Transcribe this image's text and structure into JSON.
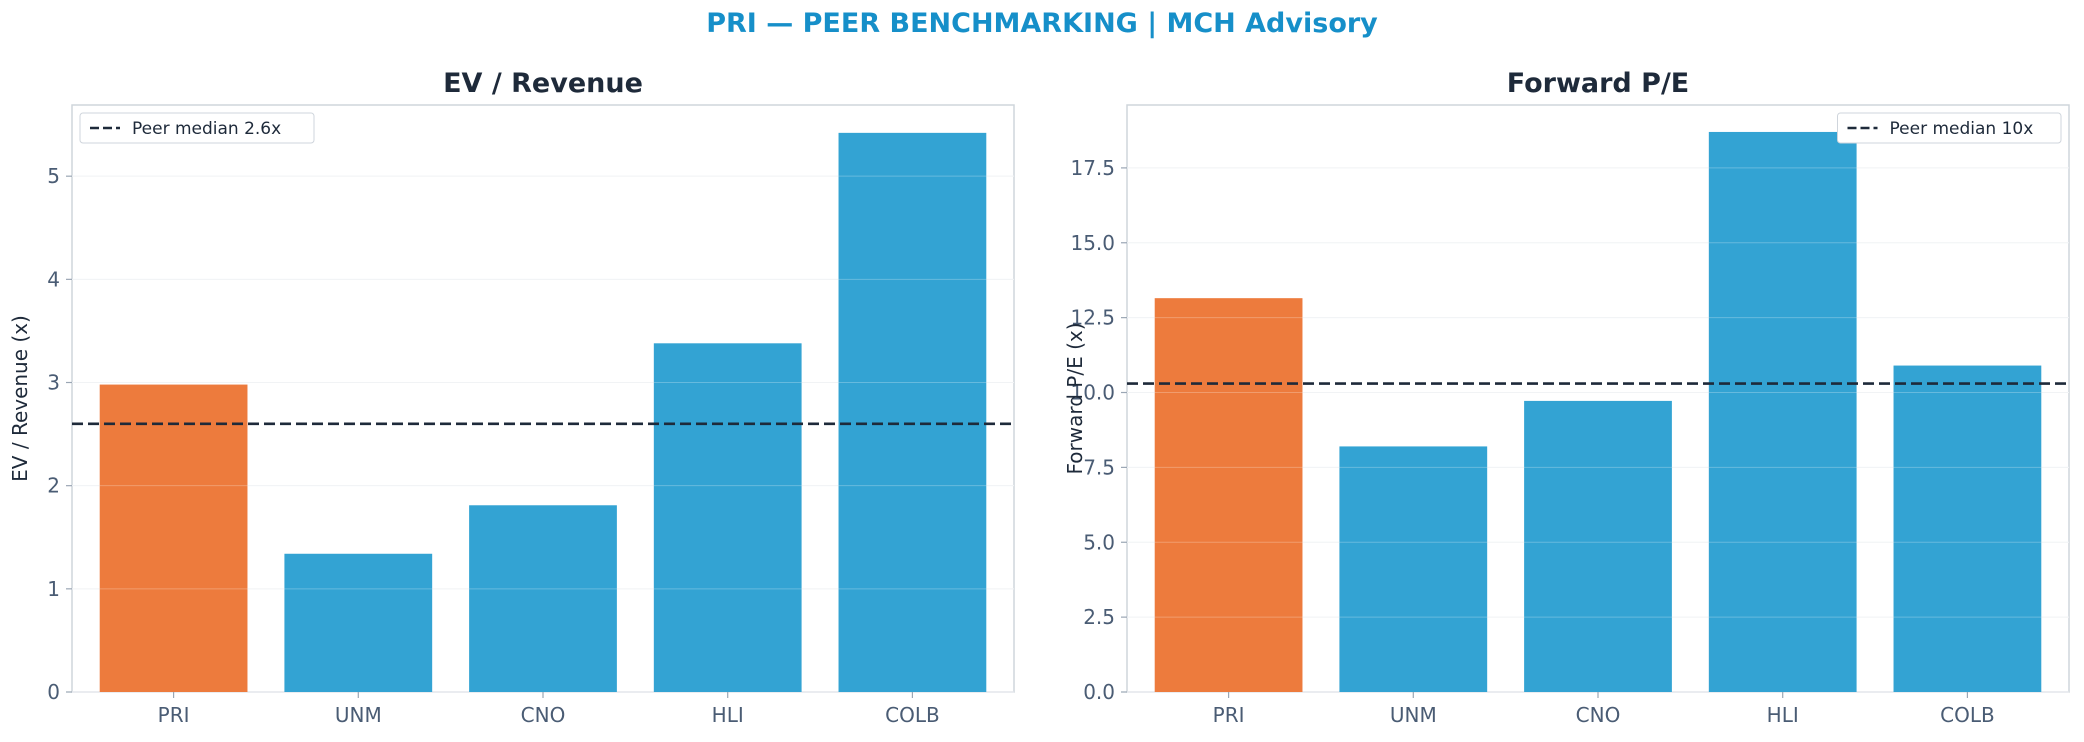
{
  "figure": {
    "title": "PRI — PEER BENCHMARKING | MCH Advisory"
  },
  "colors": {
    "highlight": "#ed7b3d",
    "peer": "#33a3d3",
    "median_line": "#1e2a3a",
    "title": "#168fc9"
  },
  "chart_data": [
    {
      "type": "bar",
      "title": "EV / Revenue",
      "xlabel": "",
      "ylabel": "EV / Revenue (x)",
      "categories": [
        "PRI",
        "UNM",
        "CNO",
        "HLI",
        "COLB"
      ],
      "values": [
        2.98,
        1.34,
        1.81,
        3.38,
        5.42
      ],
      "highlight_index": 0,
      "ylim": [
        0,
        5.69
      ],
      "yticks": [
        0,
        1,
        2,
        3,
        4,
        5
      ],
      "ytick_labels": [
        "0",
        "1",
        "2",
        "3",
        "4",
        "5"
      ],
      "reference_line": {
        "value": 2.6,
        "label": "Peer median 2.6x",
        "style": "dashed"
      },
      "legend": "top-left",
      "grid": true
    },
    {
      "type": "bar",
      "title": "Forward P/E",
      "xlabel": "",
      "ylabel": "Forward P/E (x)",
      "categories": [
        "PRI",
        "UNM",
        "CNO",
        "HLI",
        "COLB"
      ],
      "values": [
        13.15,
        8.2,
        9.72,
        18.7,
        10.9
      ],
      "highlight_index": 0,
      "ylim": [
        0,
        19.6
      ],
      "yticks": [
        0,
        2.5,
        5,
        7.5,
        10,
        12.5,
        15,
        17.5
      ],
      "ytick_labels": [
        "0.0",
        "2.5",
        "5.0",
        "7.5",
        "10.0",
        "12.5",
        "15.0",
        "17.5"
      ],
      "reference_line": {
        "value": 10.3,
        "label": "Peer median 10x",
        "style": "dashed"
      },
      "legend": "top-right",
      "grid": true
    }
  ]
}
